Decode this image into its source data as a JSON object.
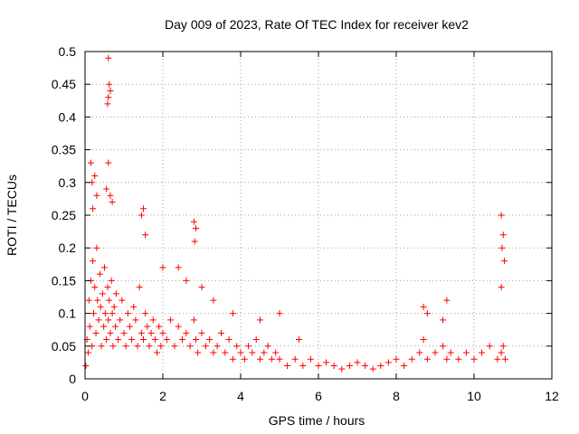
{
  "chart_data": {
    "type": "scatter",
    "title": "Day 009 of 2023, Rate Of TEC Index for receiver kev2",
    "xlabel": "GPS time / hours",
    "ylabel": "ROTI / TECUs",
    "xlim": [
      0,
      12
    ],
    "ylim": [
      0,
      0.5
    ],
    "xticks": [
      "0",
      "2",
      "4",
      "6",
      "8",
      "10",
      "12"
    ],
    "yticks": [
      "0",
      "0.05",
      "0.1",
      "0.15",
      "0.2",
      "0.25",
      "0.3",
      "0.35",
      "0.4",
      "0.45",
      "0.5"
    ],
    "grid": true,
    "marker": "plus",
    "color": "#ff0000",
    "series": [
      {
        "x": [
          0.02,
          0.05,
          0.08,
          0.1,
          0.12,
          0.15,
          0.18,
          0.2,
          0.22,
          0.25,
          0.28,
          0.3,
          0.32,
          0.35,
          0.38,
          0.4,
          0.42,
          0.45,
          0.48,
          0.5,
          0.52,
          0.55,
          0.58,
          0.6,
          0.62,
          0.65,
          0.68,
          0.7,
          0.72,
          0.75,
          0.78,
          0.8,
          0.85,
          0.9,
          0.95,
          1.0,
          1.05,
          1.1,
          1.15,
          1.2,
          1.25,
          1.3,
          1.35,
          1.4,
          1.45,
          1.5,
          1.55,
          1.6,
          1.65,
          1.7,
          1.75,
          1.8,
          1.85,
          1.9,
          1.95,
          2.0,
          2.1,
          2.2,
          2.3,
          2.4,
          2.5,
          2.6,
          2.7,
          2.8,
          2.85,
          2.9,
          3.0,
          3.1,
          3.2,
          3.3,
          3.4,
          3.5,
          3.6,
          3.7,
          3.8,
          3.9,
          4.0,
          4.1,
          4.2,
          4.3,
          4.4,
          4.5,
          4.6,
          4.7,
          4.8,
          4.9,
          5.0,
          5.2,
          5.4,
          5.6,
          5.8,
          6.0,
          6.2,
          6.4,
          6.6,
          6.8,
          7.0,
          7.2,
          7.4,
          7.6,
          7.8,
          8.0,
          8.2,
          8.4,
          8.6,
          8.7,
          8.8,
          9.0,
          9.2,
          9.3,
          9.4,
          9.6,
          9.8,
          10.0,
          10.2,
          10.4,
          10.6,
          10.7,
          10.75,
          10.8,
          0.6,
          0.62,
          0.58,
          0.65,
          0.6,
          0.15,
          0.18,
          0.2,
          0.25,
          0.3,
          0.55,
          0.6,
          0.65,
          0.7,
          1.45,
          1.5,
          1.55,
          2.8,
          2.85,
          2.82,
          2.0,
          2.4,
          2.6,
          3.0,
          3.3,
          3.8,
          4.5,
          5.0,
          5.5,
          8.7,
          8.8,
          9.2,
          9.3,
          10.7,
          10.75,
          10.72,
          10.78,
          10.7
        ],
        "y": [
          0.02,
          0.06,
          0.04,
          0.12,
          0.08,
          0.15,
          0.05,
          0.18,
          0.1,
          0.14,
          0.07,
          0.2,
          0.12,
          0.09,
          0.16,
          0.11,
          0.05,
          0.13,
          0.08,
          0.17,
          0.1,
          0.06,
          0.14,
          0.09,
          0.12,
          0.07,
          0.15,
          0.1,
          0.05,
          0.11,
          0.08,
          0.13,
          0.06,
          0.09,
          0.12,
          0.07,
          0.05,
          0.1,
          0.08,
          0.06,
          0.11,
          0.09,
          0.05,
          0.14,
          0.07,
          0.06,
          0.1,
          0.08,
          0.05,
          0.07,
          0.09,
          0.06,
          0.04,
          0.08,
          0.05,
          0.07,
          0.06,
          0.09,
          0.05,
          0.08,
          0.06,
          0.07,
          0.05,
          0.09,
          0.06,
          0.04,
          0.07,
          0.05,
          0.06,
          0.04,
          0.05,
          0.07,
          0.04,
          0.06,
          0.03,
          0.05,
          0.04,
          0.03,
          0.05,
          0.04,
          0.06,
          0.03,
          0.04,
          0.05,
          0.03,
          0.04,
          0.03,
          0.02,
          0.03,
          0.02,
          0.03,
          0.02,
          0.025,
          0.02,
          0.015,
          0.02,
          0.025,
          0.02,
          0.015,
          0.02,
          0.025,
          0.03,
          0.02,
          0.03,
          0.04,
          0.06,
          0.03,
          0.04,
          0.05,
          0.03,
          0.04,
          0.03,
          0.04,
          0.03,
          0.04,
          0.05,
          0.03,
          0.04,
          0.05,
          0.03,
          0.49,
          0.45,
          0.42,
          0.44,
          0.43,
          0.33,
          0.3,
          0.26,
          0.31,
          0.28,
          0.29,
          0.33,
          0.28,
          0.27,
          0.25,
          0.26,
          0.22,
          0.24,
          0.23,
          0.21,
          0.17,
          0.17,
          0.15,
          0.14,
          0.12,
          0.1,
          0.09,
          0.1,
          0.06,
          0.11,
          0.1,
          0.09,
          0.12,
          0.25,
          0.22,
          0.2,
          0.18,
          0.14
        ]
      }
    ]
  }
}
